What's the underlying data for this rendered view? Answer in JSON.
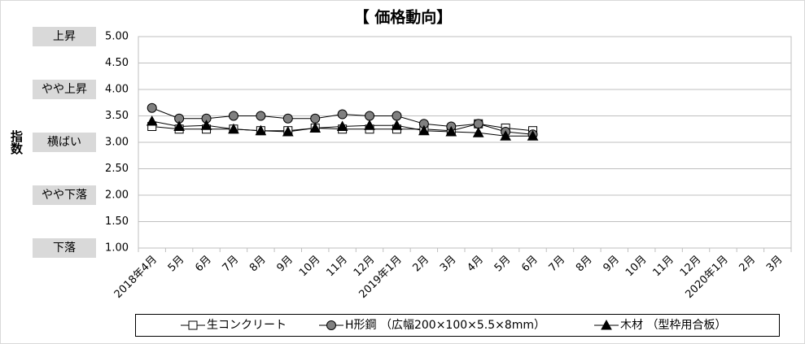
{
  "chart_data": {
    "type": "line",
    "title": "【 価格動向】",
    "y_label": "指数",
    "level_labels": [
      {
        "value": 5,
        "label": "上昇"
      },
      {
        "value": 4,
        "label": "やや上昇"
      },
      {
        "value": 3,
        "label": "横ばい"
      },
      {
        "value": 2,
        "label": "やや下落"
      },
      {
        "value": 1,
        "label": "下落"
      }
    ],
    "categories": [
      "2018年4月",
      "5月",
      "6月",
      "7月",
      "8月",
      "9月",
      "10月",
      "11月",
      "12月",
      "2019年1月",
      "2月",
      "3月",
      "4月",
      "5月",
      "6月",
      "7月",
      "8月",
      "9月",
      "10月",
      "11月",
      "12月",
      "2020年1月",
      "2月",
      "3月"
    ],
    "series": [
      {
        "name": "生コンクリート",
        "marker": "square",
        "color": "#ffffff",
        "line_color": "#000000",
        "values": [
          3.3,
          3.25,
          3.25,
          3.25,
          3.22,
          3.22,
          3.27,
          3.25,
          3.25,
          3.25,
          3.25,
          3.22,
          3.35,
          3.27,
          3.22,
          null,
          null,
          null,
          null,
          null,
          null,
          null,
          null,
          null
        ]
      },
      {
        "name": "H形鋼 （広幅200×100×5.5×8mm）",
        "marker": "circle",
        "color": "#808080",
        "line_color": "#000000",
        "values": [
          3.65,
          3.45,
          3.45,
          3.5,
          3.5,
          3.45,
          3.45,
          3.53,
          3.5,
          3.5,
          3.35,
          3.3,
          3.35,
          3.2,
          3.15,
          null,
          null,
          null,
          null,
          null,
          null,
          null,
          null,
          null
        ]
      },
      {
        "name": "木材 （型枠用合板）",
        "marker": "triangle",
        "color": "#000000",
        "line_color": "#000000",
        "values": [
          3.4,
          3.3,
          3.32,
          3.25,
          3.22,
          3.2,
          3.27,
          3.3,
          3.32,
          3.32,
          3.22,
          3.2,
          3.18,
          3.12,
          3.12,
          null,
          null,
          null,
          null,
          null,
          null,
          null,
          null,
          null
        ]
      }
    ],
    "ylim": [
      1,
      5
    ],
    "yticks": [
      {
        "value": 1,
        "label": "1.00"
      },
      {
        "value": 1.5,
        "label": "1.50"
      },
      {
        "value": 2,
        "label": "2.00"
      },
      {
        "value": 2.5,
        "label": "2.50"
      },
      {
        "value": 3,
        "label": "3.00"
      },
      {
        "value": 3.5,
        "label": "3.50"
      },
      {
        "value": 4,
        "label": "4.00"
      },
      {
        "value": 4.5,
        "label": "4.50"
      },
      {
        "value": 5,
        "label": "5.00"
      }
    ],
    "grid": true
  }
}
